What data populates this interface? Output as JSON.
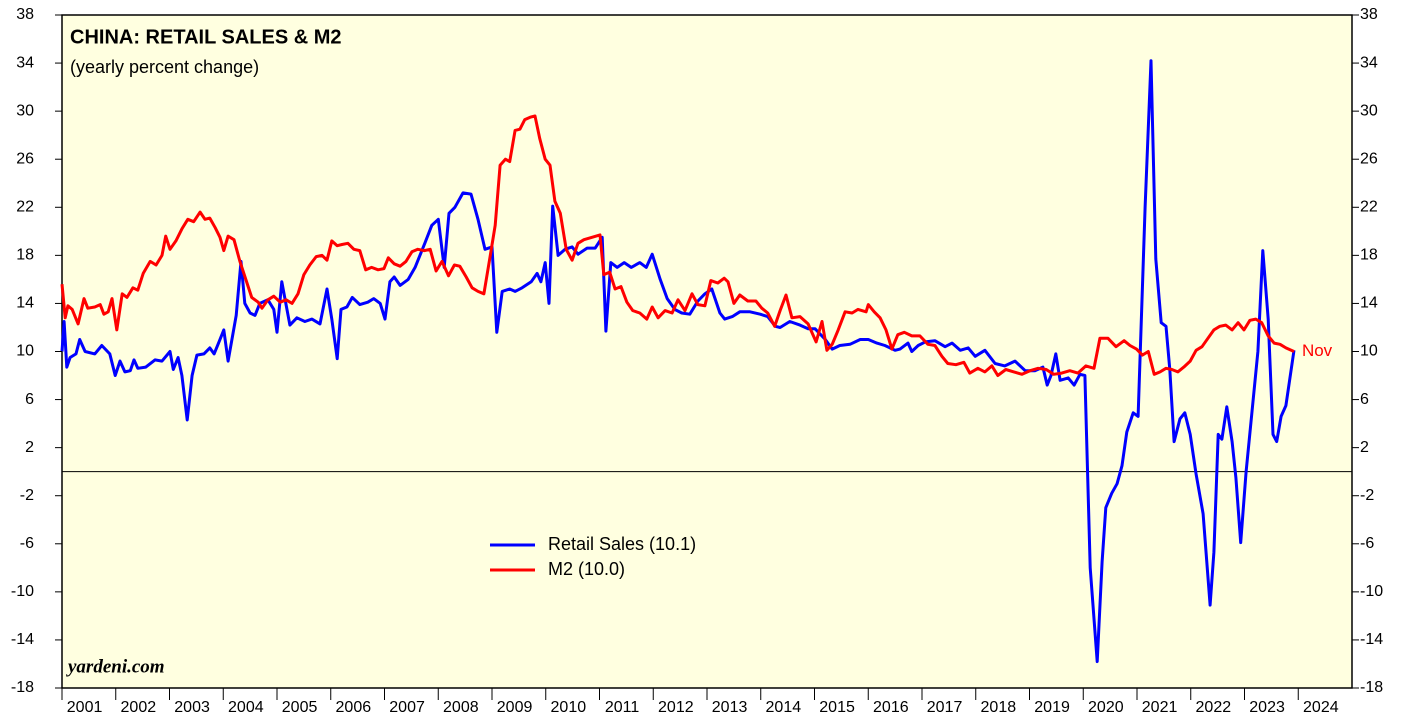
{
  "chart_data": {
    "type": "line",
    "title": "CHINA: RETAIL SALES & M2",
    "subtitle": "(yearly percent change)",
    "source": "yardeni.com",
    "end_label": "Nov",
    "xlim": [
      2001,
      2025
    ],
    "xticks": [
      2001,
      2002,
      2003,
      2004,
      2005,
      2006,
      2007,
      2008,
      2009,
      2010,
      2011,
      2012,
      2013,
      2014,
      2015,
      2016,
      2017,
      2018,
      2019,
      2020,
      2021,
      2022,
      2023,
      2024
    ],
    "ylim": [
      -18,
      38
    ],
    "yticks": [
      -18,
      -14,
      -10,
      -6,
      -2,
      2,
      6,
      10,
      14,
      18,
      22,
      26,
      30,
      34,
      38
    ],
    "series": [
      {
        "name": "Retail Sales (10.1)",
        "color": "#0000ff",
        "x": [
          2001.0,
          2001.04,
          2001.09,
          2001.15,
          2001.26,
          2001.33,
          2001.43,
          2001.61,
          2001.74,
          2001.89,
          2001.99,
          2002.08,
          2002.17,
          2002.27,
          2002.34,
          2002.41,
          2002.56,
          2002.73,
          2002.86,
          2003.01,
          2003.07,
          2003.16,
          2003.23,
          2003.33,
          2003.42,
          2003.51,
          2003.64,
          2003.75,
          2003.83,
          2003.92,
          2004.01,
          2004.09,
          2004.24,
          2004.33,
          2004.4,
          2004.5,
          2004.59,
          2004.68,
          2004.83,
          2004.94,
          2005.0,
          2005.09,
          2005.24,
          2005.37,
          2005.52,
          2005.65,
          2005.8,
          2005.93,
          2006.02,
          2006.12,
          2006.19,
          2006.3,
          2006.4,
          2006.54,
          2006.69,
          2006.8,
          2006.92,
          2007.01,
          2007.1,
          2007.18,
          2007.29,
          2007.44,
          2007.57,
          2007.75,
          2007.88,
          2008.0,
          2008.11,
          2008.2,
          2008.31,
          2008.46,
          2008.61,
          2008.74,
          2008.87,
          2009.0,
          2009.09,
          2009.19,
          2009.33,
          2009.43,
          2009.56,
          2009.73,
          2009.84,
          2009.91,
          2009.99,
          2010.06,
          2010.13,
          2010.23,
          2010.36,
          2010.49,
          2010.6,
          2010.77,
          2010.92,
          2011.05,
          2011.12,
          2011.21,
          2011.33,
          2011.46,
          2011.59,
          2011.75,
          2011.87,
          2011.98,
          2012.13,
          2012.26,
          2012.4,
          2012.53,
          2012.68,
          2012.83,
          2012.96,
          2013.09,
          2013.24,
          2013.33,
          2013.47,
          2013.61,
          2013.8,
          2013.99,
          2014.13,
          2014.27,
          2014.36,
          2014.54,
          2014.73,
          2014.88,
          2015.01,
          2015.2,
          2015.33,
          2015.47,
          2015.66,
          2015.85,
          2016.0,
          2016.16,
          2016.31,
          2016.5,
          2016.59,
          2016.74,
          2016.81,
          2016.93,
          2017.06,
          2017.24,
          2017.43,
          2017.56,
          2017.71,
          2017.86,
          2017.99,
          2018.17,
          2018.36,
          2018.54,
          2018.73,
          2018.92,
          2019.1,
          2019.25,
          2019.33,
          2019.4,
          2019.49,
          2019.57,
          2019.72,
          2019.83,
          2019.94,
          2020.03,
          2020.13,
          2020.26,
          2020.35,
          2020.42,
          2020.53,
          2020.63,
          2020.72,
          2020.81,
          2020.93,
          2021.02,
          2021.15,
          2021.26,
          2021.35,
          2021.45,
          2021.54,
          2021.61,
          2021.69,
          2021.8,
          2021.89,
          2021.99,
          2022.1,
          2022.23,
          2022.36,
          2022.43,
          2022.51,
          2022.58,
          2022.67,
          2022.77,
          2022.84,
          2022.93,
          2023.03,
          2023.14,
          2023.25,
          2023.34,
          2023.44,
          2023.53,
          2023.6,
          2023.68,
          2023.77,
          2023.92
        ],
        "values": [
          10,
          12.5,
          8.7,
          9.5,
          9.8,
          11,
          10,
          9.8,
          10.5,
          9.8,
          8,
          9.2,
          8.3,
          8.4,
          9.3,
          8.6,
          8.7,
          9.3,
          9.2,
          10,
          8.5,
          9.5,
          8,
          4.3,
          8,
          9.7,
          9.8,
          10.3,
          9.8,
          10.8,
          11.8,
          9.2,
          13,
          17.5,
          14,
          13.2,
          13,
          14,
          14.3,
          13.5,
          11.6,
          15.8,
          12.2,
          12.8,
          12.5,
          12.7,
          12.3,
          15.2,
          12.7,
          9.4,
          13.5,
          13.7,
          14.5,
          13.9,
          14.1,
          14.4,
          14,
          12.7,
          15.8,
          16.2,
          15.5,
          16,
          17,
          19,
          20.5,
          21,
          17,
          21.5,
          22,
          23.2,
          23.1,
          21,
          18.5,
          18.7,
          11.6,
          15,
          15.2,
          15,
          15.3,
          15.8,
          16.5,
          15.8,
          17.4,
          14,
          22.1,
          18,
          18.5,
          18.7,
          18.1,
          18.6,
          18.6,
          19.5,
          11.7,
          17.4,
          17,
          17.4,
          17,
          17.4,
          17,
          18.1,
          16,
          14.4,
          13.5,
          13.2,
          13.1,
          14.2,
          14.8,
          15.2,
          13.2,
          12.7,
          12.9,
          13.3,
          13.3,
          13.1,
          12.9,
          12.1,
          12,
          12.5,
          12.2,
          11.9,
          11.9,
          11,
          10.2,
          10.5,
          10.6,
          11,
          11,
          10.7,
          10.5,
          10.1,
          10.2,
          10.7,
          10,
          10.5,
          10.8,
          10.9,
          10.4,
          10.7,
          10.1,
          10.3,
          9.6,
          10.1,
          9,
          8.8,
          9.2,
          8.4,
          8.4,
          8.7,
          7.2,
          8,
          9.8,
          7.6,
          7.8,
          7.2,
          8.1,
          8,
          -8,
          -15.8,
          -7.5,
          -3,
          -1.8,
          -1,
          0.5,
          3.3,
          4.9,
          4.6,
          22,
          34.2,
          17.7,
          12.4,
          12.1,
          8.5,
          2.5,
          4.4,
          4.9,
          3.1,
          -0.2,
          -3.5,
          -11.1,
          -6.7,
          3.1,
          2.7,
          5.4,
          2.5,
          -0.5,
          -5.9,
          0,
          5,
          10,
          18.4,
          12.7,
          3.1,
          2.5,
          4.6,
          5.5,
          10.1
        ]
      },
      {
        "name": "M2 (10.0)",
        "color": "#ff0000",
        "x": [
          2001.0,
          2001.06,
          2001.11,
          2001.19,
          2001.3,
          2001.41,
          2001.48,
          2001.61,
          2001.71,
          2001.78,
          2001.86,
          2001.93,
          2002.02,
          2002.12,
          2002.21,
          2002.32,
          2002.41,
          2002.51,
          2002.64,
          2002.75,
          2002.86,
          2002.93,
          2003.01,
          2003.12,
          2003.23,
          2003.34,
          2003.45,
          2003.57,
          2003.66,
          2003.75,
          2003.85,
          2003.94,
          2004.01,
          2004.09,
          2004.2,
          2004.31,
          2004.42,
          2004.53,
          2004.65,
          2004.72,
          2004.83,
          2004.94,
          2005.06,
          2005.17,
          2005.28,
          2005.39,
          2005.5,
          2005.61,
          2005.73,
          2005.84,
          2005.93,
          2006.02,
          2006.12,
          2006.21,
          2006.32,
          2006.43,
          2006.54,
          2006.65,
          2006.76,
          2006.88,
          2006.99,
          2007.07,
          2007.18,
          2007.29,
          2007.4,
          2007.51,
          2007.62,
          2007.74,
          2007.85,
          2007.96,
          2008.07,
          2008.19,
          2008.3,
          2008.4,
          2008.52,
          2008.63,
          2008.74,
          2008.85,
          2008.96,
          2009.06,
          2009.15,
          2009.25,
          2009.33,
          2009.43,
          2009.52,
          2009.61,
          2009.71,
          2009.8,
          2009.89,
          2009.99,
          2010.08,
          2010.17,
          2010.27,
          2010.38,
          2010.49,
          2010.6,
          2010.71,
          2010.86,
          2011.01,
          2011.08,
          2011.19,
          2011.29,
          2011.4,
          2011.51,
          2011.62,
          2011.75,
          2011.88,
          2011.98,
          2012.09,
          2012.22,
          2012.35,
          2012.46,
          2012.59,
          2012.72,
          2012.83,
          2012.96,
          2013.07,
          2013.2,
          2013.32,
          2013.39,
          2013.5,
          2013.61,
          2013.76,
          2013.91,
          2014.02,
          2014.13,
          2014.26,
          2014.36,
          2014.47,
          2014.58,
          2014.73,
          2014.88,
          2015.03,
          2015.14,
          2015.23,
          2015.33,
          2015.44,
          2015.57,
          2015.7,
          2015.81,
          2015.96,
          2016.0,
          2016.11,
          2016.22,
          2016.33,
          2016.44,
          2016.55,
          2016.67,
          2016.81,
          2016.96,
          2017.11,
          2017.24,
          2017.37,
          2017.48,
          2017.63,
          2017.78,
          2017.89,
          2018.04,
          2018.17,
          2018.3,
          2018.41,
          2018.56,
          2018.71,
          2018.86,
          2019.01,
          2019.16,
          2019.31,
          2019.45,
          2019.6,
          2019.75,
          2019.9,
          2020.05,
          2020.2,
          2020.31,
          2020.46,
          2020.61,
          2020.76,
          2020.87,
          2020.99,
          2021.1,
          2021.21,
          2021.32,
          2021.43,
          2021.54,
          2021.65,
          2021.76,
          2021.87,
          2021.99,
          2022.1,
          2022.21,
          2022.32,
          2022.43,
          2022.54,
          2022.65,
          2022.77,
          2022.88,
          2022.99,
          2023.1,
          2023.21,
          2023.32,
          2023.44,
          2023.55,
          2023.66,
          2023.77,
          2023.92
        ],
        "values": [
          15.6,
          12.8,
          13.8,
          13.5,
          12.3,
          14.4,
          13.6,
          13.7,
          13.9,
          13.1,
          13.3,
          14.4,
          11.8,
          14.8,
          14.5,
          15.3,
          15.1,
          16.5,
          17.5,
          17.2,
          18,
          19.6,
          18.5,
          19.2,
          20.2,
          21,
          20.8,
          21.6,
          21,
          21.1,
          20.3,
          19.5,
          18.4,
          19.6,
          19.3,
          17.5,
          16,
          14.5,
          14.1,
          13.6,
          14.3,
          14.6,
          14.1,
          14.3,
          14,
          14.8,
          16.4,
          17.2,
          17.9,
          18,
          17.6,
          19.2,
          18.8,
          18.9,
          19.0,
          18.5,
          18.4,
          16.8,
          17,
          16.8,
          16.9,
          17.8,
          17.3,
          17.1,
          17.5,
          18.3,
          18.5,
          18.4,
          18.5,
          16.7,
          17.5,
          16.3,
          17.2,
          17.1,
          16.2,
          15.3,
          15,
          14.8,
          17.8,
          20.5,
          25.5,
          26.0,
          25.8,
          28.4,
          28.5,
          29.3,
          29.5,
          29.6,
          27.7,
          26.0,
          25.5,
          22.5,
          21.5,
          18.5,
          17.6,
          19.0,
          19.3,
          19.5,
          19.7,
          16.4,
          16.6,
          15.2,
          15.4,
          14.1,
          13.4,
          13.2,
          12.7,
          13.7,
          12.8,
          13.4,
          13.2,
          14.3,
          13.4,
          14.8,
          13.9,
          13.8,
          15.9,
          15.7,
          16.1,
          15.8,
          14.0,
          14.7,
          14.2,
          14.2,
          13.6,
          13.2,
          12.1,
          13.4,
          14.7,
          12.8,
          12.9,
          12.3,
          10.8,
          12.5,
          10.1,
          10.6,
          11.8,
          13.3,
          13.2,
          13.5,
          13.3,
          13.9,
          13.3,
          12.8,
          11.8,
          10.2,
          11.4,
          11.6,
          11.3,
          11.3,
          10.6,
          10.5,
          9.6,
          9.0,
          8.9,
          9.1,
          8.2,
          8.6,
          8.3,
          8.8,
          8.0,
          8.5,
          8.3,
          8.1,
          8.4,
          8.6,
          8.5,
          8.1,
          8.2,
          8.4,
          8.2,
          8.8,
          8.6,
          11.1,
          11.1,
          10.4,
          10.9,
          10.5,
          10.2,
          9.7,
          10.0,
          8.1,
          8.3,
          8.6,
          8.5,
          8.3,
          8.7,
          9.2,
          10.1,
          10.4,
          11.1,
          11.8,
          12.1,
          12.2,
          11.8,
          12.4,
          11.8,
          12.6,
          12.7,
          12.4,
          11.3,
          10.7,
          10.6,
          10.3,
          10.0
        ]
      }
    ]
  }
}
